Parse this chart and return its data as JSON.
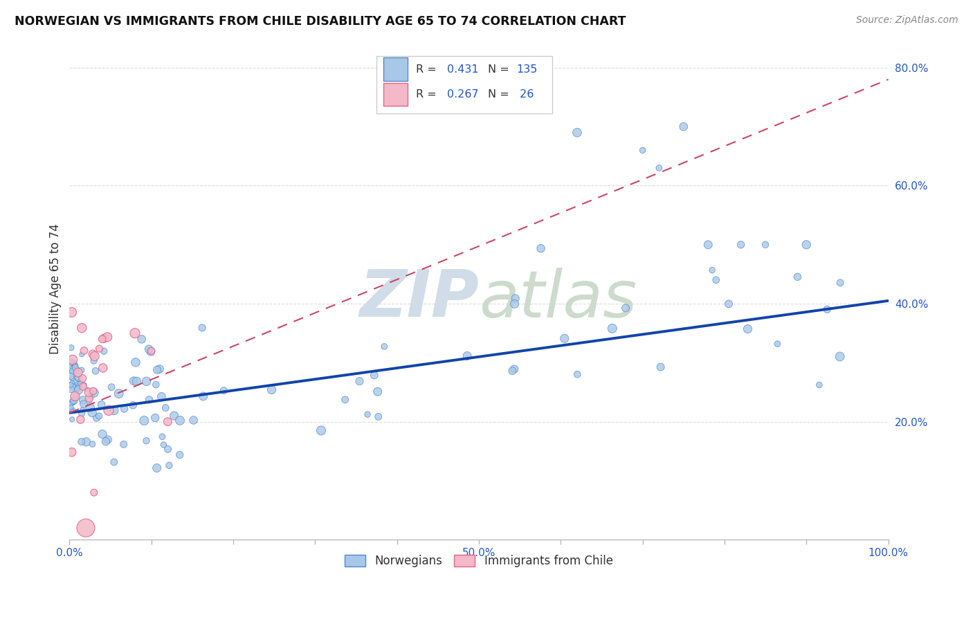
{
  "title": "NORWEGIAN VS IMMIGRANTS FROM CHILE DISABILITY AGE 65 TO 74 CORRELATION CHART",
  "source": "Source: ZipAtlas.com",
  "ylabel": "Disability Age 65 to 74",
  "xlim": [
    0.0,
    1.0
  ],
  "ylim": [
    0.0,
    0.85
  ],
  "norwegian_color": "#a8c8e8",
  "norwegian_edge_color": "#5588cc",
  "chile_color": "#f4b8c8",
  "chile_edge_color": "#dd6688",
  "trend_norwegian_color": "#1144aa",
  "trend_chile_color": "#cc4466",
  "legend_color": "#2255cc",
  "watermark_color": "#d0dde8",
  "R_norwegian": 0.431,
  "N_norwegian": 135,
  "R_chile": 0.267,
  "N_chile": 26,
  "nor_trend_x0": 0.0,
  "nor_trend_y0": 0.215,
  "nor_trend_x1": 1.0,
  "nor_trend_y1": 0.405,
  "chile_trend_x0": 0.0,
  "chile_trend_y0": 0.215,
  "chile_trend_x1": 1.0,
  "chile_trend_y1": 0.78
}
